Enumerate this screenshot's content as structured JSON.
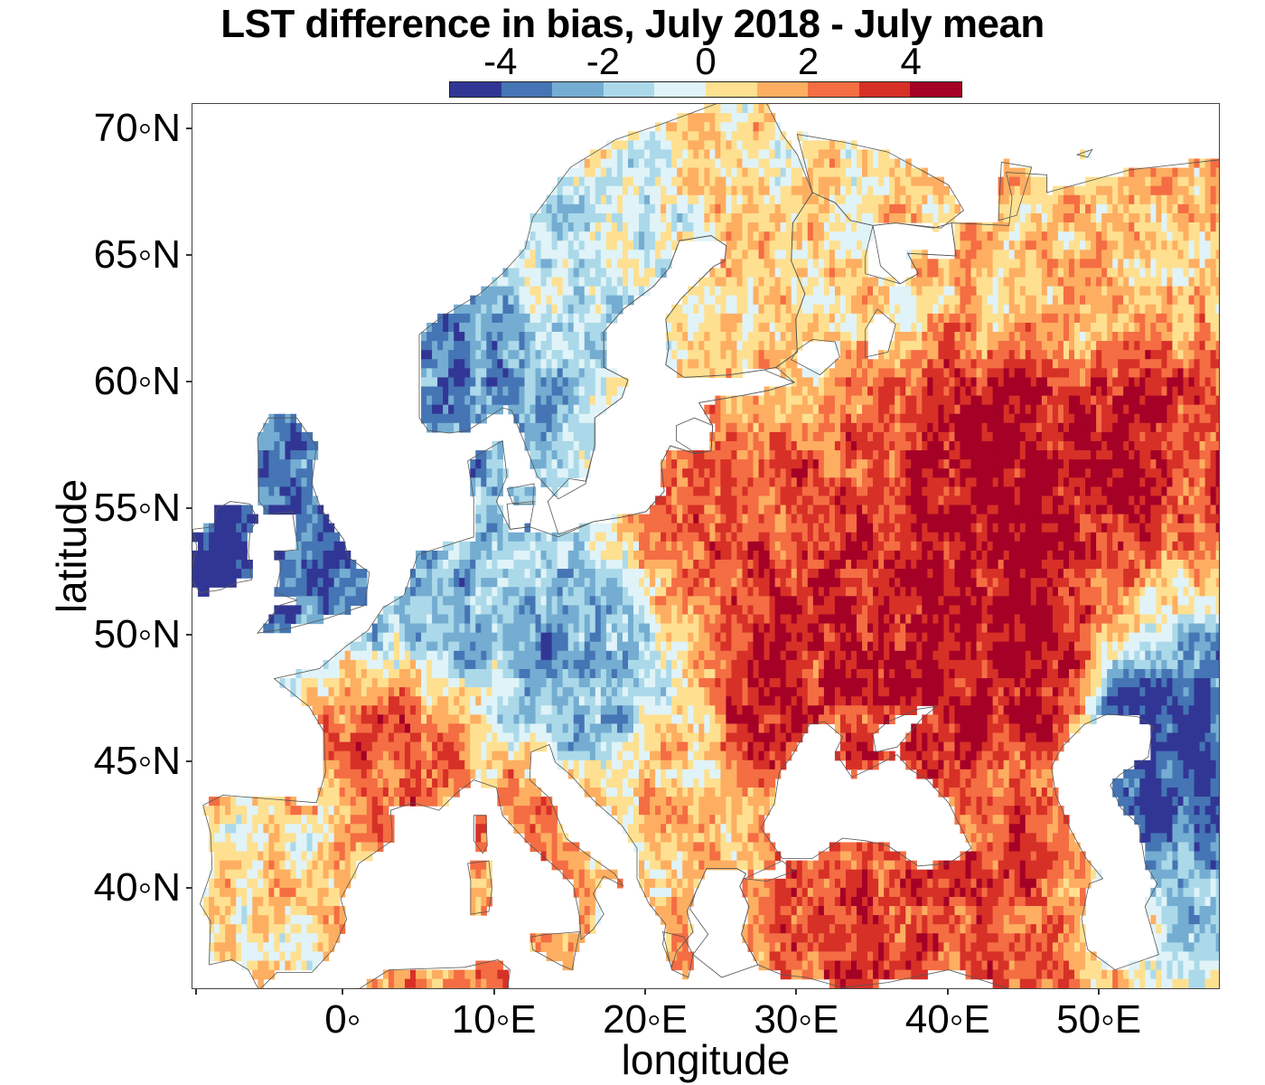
{
  "title": "LST difference in bias, July 2018 - July mean",
  "colorbar": {
    "tick_labels": [
      "-4",
      "-2",
      "0",
      "2",
      "4"
    ],
    "tick_values": [
      -4,
      -2,
      0,
      2,
      4
    ],
    "range": [
      -5,
      5
    ],
    "colors": [
      "#313695",
      "#4575b4",
      "#74add1",
      "#abd9e9",
      "#e0f3f8",
      "#fee090",
      "#fdae61",
      "#f46d43",
      "#d73027",
      "#a50026"
    ]
  },
  "axes": {
    "xlabel": "longitude",
    "ylabel": "latitude",
    "xlim": [
      -10,
      58
    ],
    "ylim": [
      36,
      71
    ],
    "x_ticks": [
      {
        "value": 0,
        "label": "0◦"
      },
      {
        "value": 10,
        "label": "10◦E"
      },
      {
        "value": 20,
        "label": "20◦E"
      },
      {
        "value": 30,
        "label": "30◦E"
      },
      {
        "value": 40,
        "label": "40◦E"
      },
      {
        "value": 50,
        "label": "50◦E"
      }
    ],
    "y_ticks": [
      {
        "value": 40,
        "label": "40◦N"
      },
      {
        "value": 45,
        "label": "45◦N"
      },
      {
        "value": 50,
        "label": "50◦N"
      },
      {
        "value": 55,
        "label": "55◦N"
      },
      {
        "value": 60,
        "label": "60◦N"
      },
      {
        "value": 65,
        "label": "65◦N"
      },
      {
        "value": 70,
        "label": "70◦N"
      }
    ]
  },
  "chart_data": {
    "type": "heatmap",
    "title": "LST difference in bias, July 2018 - July mean",
    "xlabel": "longitude",
    "ylabel": "latitude",
    "xlim": [
      -10,
      58
    ],
    "ylim": [
      36,
      71
    ],
    "value_range": [
      -5,
      5
    ],
    "colorbar_ticks": [
      -4,
      -2,
      0,
      2,
      4
    ],
    "colormap": "RdYlBu reversed, 10 discrete classes",
    "grid": false,
    "regions_approx": [
      {
        "region": "Ireland",
        "lon": -8,
        "lat": 53.3,
        "value": -4.5
      },
      {
        "region": "Great Britain",
        "lon": -2,
        "lat": 54.5,
        "value": -3.8
      },
      {
        "region": "Western Norway",
        "lon": 7,
        "lat": 61,
        "value": -3.0
      },
      {
        "region": "Germany / Benelux",
        "lon": 9,
        "lat": 51,
        "value": -2.2
      },
      {
        "region": "Alps / Danube",
        "lon": 16,
        "lat": 47.5,
        "value": -2.5
      },
      {
        "region": "Scandinavia interior",
        "lon": 16,
        "lat": 64,
        "value": -0.8
      },
      {
        "region": "Finland / Karelia",
        "lon": 30,
        "lat": 64,
        "value": 0.8
      },
      {
        "region": "Northern Russia",
        "lon": 48,
        "lat": 64,
        "value": 1.0
      },
      {
        "region": "Central Russia (Volga)",
        "lon": 46,
        "lat": 57.5,
        "value": 4.5
      },
      {
        "region": "Belarus / W Russia",
        "lon": 28,
        "lat": 54,
        "value": 3.2
      },
      {
        "region": "Central Russia",
        "lon": 37,
        "lat": 51.5,
        "value": 4.0
      },
      {
        "region": "Ukraine",
        "lon": 30,
        "lat": 48.5,
        "value": 3.6
      },
      {
        "region": "Lower Volga",
        "lon": 46,
        "lat": 48,
        "value": 4.4
      },
      {
        "region": "Caspian coast",
        "lon": 52,
        "lat": 46,
        "value": -4.5
      },
      {
        "region": "Caucasus",
        "lon": 44,
        "lat": 43.5,
        "value": 3.2
      },
      {
        "region": "Anatolia",
        "lon": 35,
        "lat": 39,
        "value": 3.0
      },
      {
        "region": "France (south)",
        "lon": 3,
        "lat": 45,
        "value": 2.6
      },
      {
        "region": "Iberia",
        "lon": -4,
        "lat": 40.5,
        "value": 0.5
      },
      {
        "region": "Italy",
        "lon": 13,
        "lat": 43,
        "value": 2.0
      },
      {
        "region": "Balkans",
        "lon": 21,
        "lat": 44,
        "value": 1.2
      },
      {
        "region": "North Africa coast",
        "lon": 8,
        "lat": 36.5,
        "value": 2.2
      }
    ]
  }
}
